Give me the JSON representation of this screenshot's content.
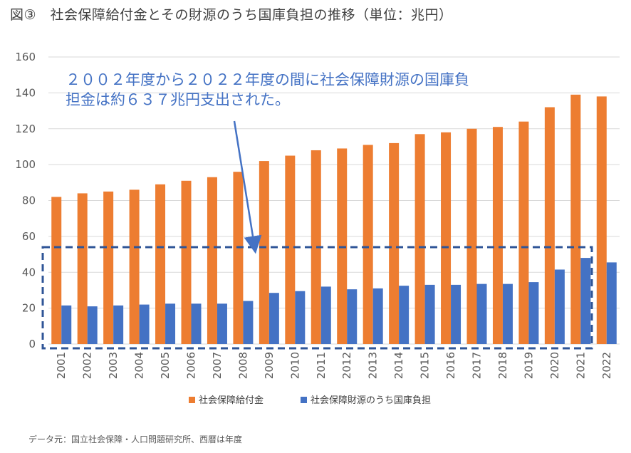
{
  "title": "図③　社会保障給付金とその財源のうち国庫負担の推移（単位：兆円）",
  "source": "データ元：国立社会保障・人口問題研究所、西暦は年度",
  "annotation": {
    "line1": "２００２年度から２０２２年度の間に社会保障財源の国庫負",
    "line2": "担金は約６３７兆円支出された。"
  },
  "colors": {
    "series1": "#ED7D31",
    "series2": "#4472C4",
    "grid": "#D9D9D9",
    "box": "#2F5597",
    "arrow": "#4472C4"
  },
  "chart_data": {
    "type": "bar",
    "categories": [
      "2001",
      "2002",
      "2003",
      "2004",
      "2005",
      "2006",
      "2007",
      "2008",
      "2009",
      "2010",
      "2011",
      "2012",
      "2013",
      "2014",
      "2015",
      "2016",
      "2017",
      "2018",
      "2019",
      "2020",
      "2021",
      "2022"
    ],
    "series": [
      {
        "name": "社会保障給付金",
        "values": [
          82,
          84,
          85,
          86,
          89,
          91,
          93,
          96,
          102,
          105,
          108,
          109,
          111,
          112,
          117,
          118,
          120,
          121,
          124,
          132,
          139,
          138
        ]
      },
      {
        "name": "社会保障財源のうち国庫負担",
        "values": [
          21.5,
          21,
          21.5,
          22,
          22.5,
          22.5,
          22.5,
          24,
          28.5,
          29.5,
          32,
          30.5,
          31,
          32.5,
          33,
          33,
          33.5,
          33.5,
          34.5,
          41.5,
          48,
          45.5
        ]
      }
    ],
    "ylim": [
      0,
      160
    ],
    "yticks": [
      "0",
      "20",
      "40",
      "60",
      "80",
      "100",
      "120",
      "140",
      "160"
    ],
    "grid": true,
    "legend": "bottom"
  }
}
